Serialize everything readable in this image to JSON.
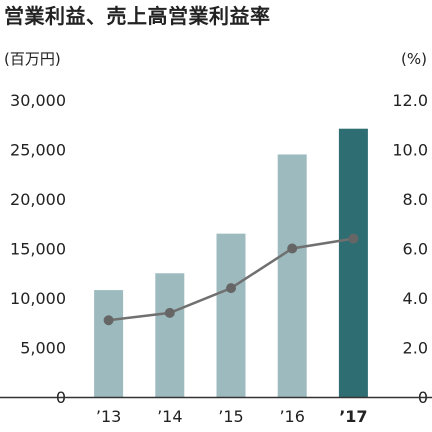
{
  "chart_data": {
    "type": "bar",
    "title": "営業利益、売上高営業利益率",
    "left_axis_unit": "(百万円)",
    "right_axis_unit": "(%)",
    "categories": [
      "’13",
      "’14",
      "’15",
      "’16",
      "’17"
    ],
    "highlight_category": "’17",
    "left_ticks": [
      "0",
      "5,000",
      "10,000",
      "15,000",
      "20,000",
      "25,000",
      "30,000"
    ],
    "right_ticks": [
      "0",
      "2.0",
      "4.0",
      "6.0",
      "8.0",
      "10.0",
      "12.0"
    ],
    "ylim_left": [
      0,
      30000
    ],
    "ylim_right": [
      0,
      12
    ],
    "grid": false,
    "series": [
      {
        "type": "bar",
        "axis": "left",
        "values": [
          10800,
          12500,
          16500,
          24500,
          27100
        ]
      },
      {
        "type": "line",
        "axis": "right",
        "values": [
          3.1,
          3.4,
          4.4,
          6.0,
          6.4
        ]
      }
    ],
    "colors": {
      "bar": "#9dbbbf",
      "bar_highlight": "#2e6e72",
      "line": "#707070",
      "marker": "#666666",
      "axis": "#333333"
    }
  }
}
